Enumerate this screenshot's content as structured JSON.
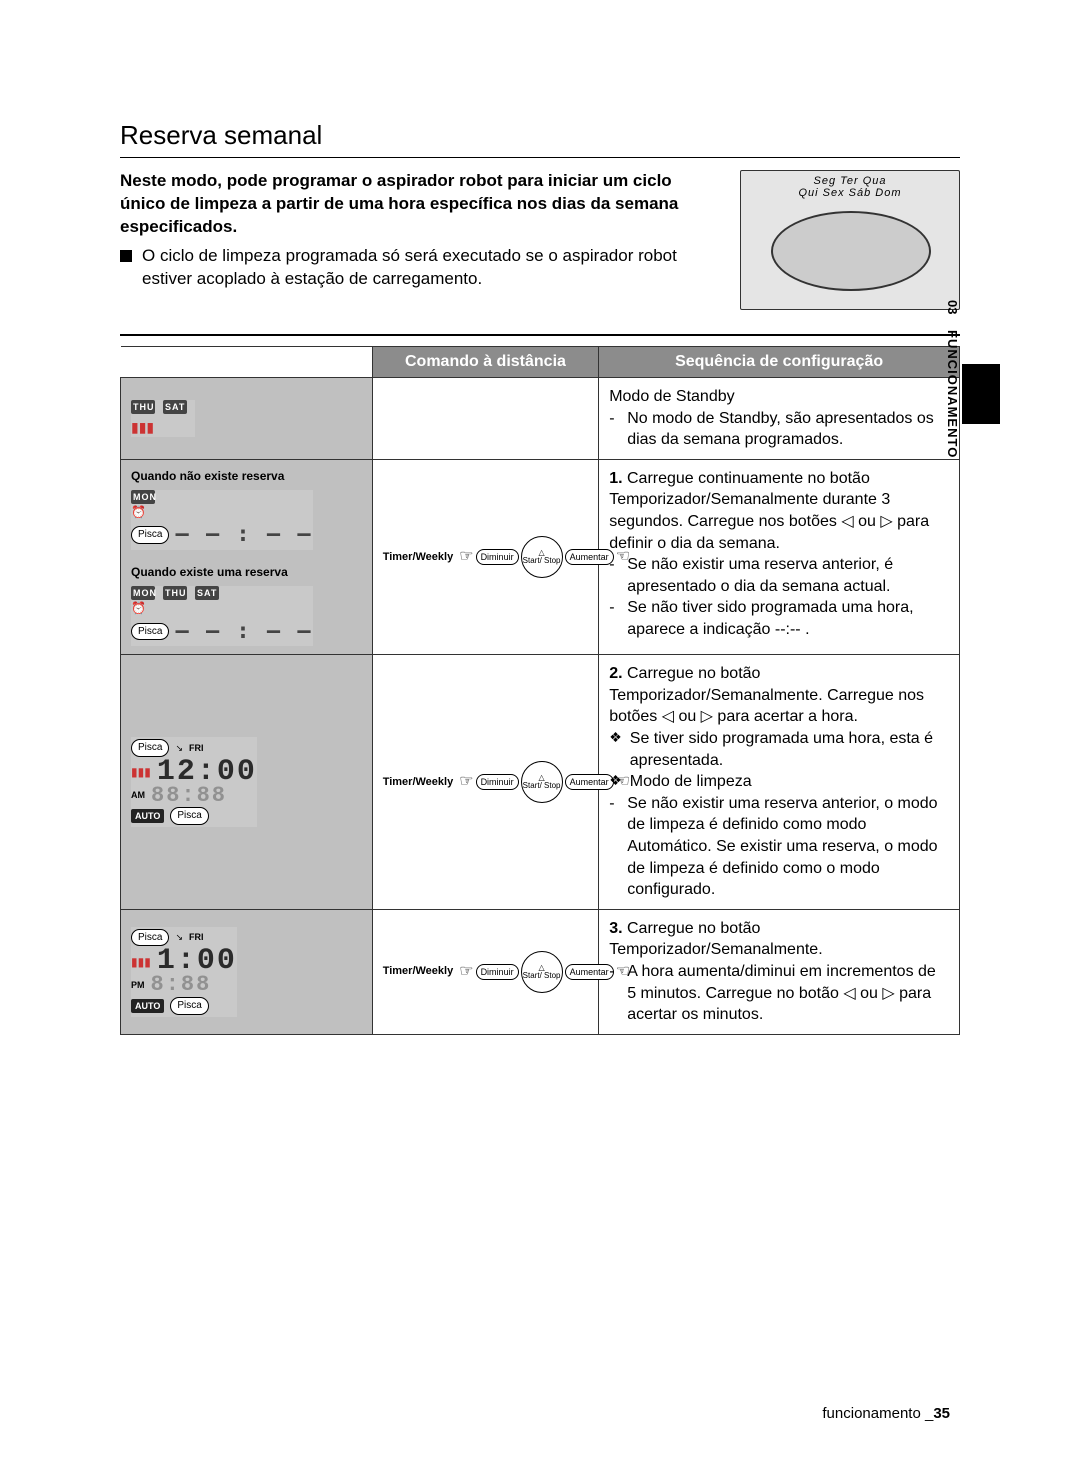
{
  "title": "Reserva semanal",
  "intro_bold": "Neste modo, pode programar o aspirador robot para iniciar um ciclo único de limpeza a partir de uma hora específica nos dias da semana especificados.",
  "intro_bullet": "O ciclo de limpeza programada só será executado se o aspirador robot estiver acoplado à estação de carregamento.",
  "robot_days_row1": "Seg  Ter  Qua",
  "robot_days_row2": "Qui  Sex  Sáb  Dom",
  "side_tab_num": "03",
  "side_tab_word": "FUNCIONAMENTO",
  "table": {
    "header_remote": "Comando à distância",
    "header_seq": "Sequência de configuração",
    "rows": [
      {
        "display": {
          "kind": "standby",
          "days": [
            "THU",
            "SAT"
          ],
          "battery": true
        },
        "remote": null,
        "seq_title": "Modo de Standby",
        "seq_items": [
          "No modo de Standby, são apresentados os dias da semana programados."
        ]
      },
      {
        "display": {
          "kind": "twostate",
          "label_no": "Quando não existe reserva",
          "label_yes": "Quando existe uma reserva",
          "state_no_days": [
            "MON"
          ],
          "state_yes_days": [
            "MON",
            "THU",
            "SAT"
          ],
          "pisca": "Pisca",
          "dashes": "— — : — —"
        },
        "remote": {
          "timer_weekly": "Timer/Weekly",
          "diminuir": "Diminuir",
          "aumentar": "Aumentar",
          "start_stop": "Start/\nStop"
        },
        "seq_num": "1.",
        "seq_lead": "Carregue continuamente no botão Temporizador/Semanalmente durante 3 segundos. Carregue nos botões ◁ ou ▷ para definir o dia da semana.",
        "seq_items": [
          "Se não existir uma reserva anterior, é apresentado o dia da semana actual.",
          "Se não tiver sido programada uma hora, aparece a indicação --:-- ."
        ]
      },
      {
        "display": {
          "kind": "time",
          "pisca": "Pisca",
          "day": "FRI",
          "time_main": "12:00",
          "time_shadow": "88:88",
          "am_pm": "AM",
          "auto": "AUTO",
          "battery": true
        },
        "remote": {
          "timer_weekly": "Timer/Weekly",
          "diminuir": "Diminuir",
          "aumentar": "Aumentar",
          "start_stop": "Start/\nStop"
        },
        "seq_num": "2.",
        "seq_lead": "Carregue no botão Temporizador/Semanalmente. Carregue nos botões ◁ ou ▷ para acertar a hora.",
        "seq_diamond": [
          "Se tiver sido programada uma hora, esta é apresentada.",
          "Modo de limpeza"
        ],
        "seq_items": [
          "Se não existir uma reserva anterior, o modo de limpeza é definido como modo Automático. Se existir uma reserva, o modo de limpeza é definido como o modo configurado."
        ]
      },
      {
        "display": {
          "kind": "time",
          "pisca": "Pisca",
          "day": "FRI",
          "time_main": "1:00",
          "time_shadow": "8:88",
          "am_pm": "PM",
          "auto": "AUTO",
          "battery": true
        },
        "remote": {
          "timer_weekly": "Timer/Weekly",
          "diminuir": "Diminuir",
          "aumentar": "Aumentar",
          "start_stop": "Start/\nStop"
        },
        "seq_num": "3.",
        "seq_lead": "Carregue no botão Temporizador/Semanalmente.",
        "seq_items": [
          "A hora aumenta/diminui em incrementos de 5 minutos. Carregue no botão ◁ ou ▷ para acertar os minutos."
        ]
      }
    ]
  },
  "footer_word": "funcionamento _",
  "footer_page": "35"
}
